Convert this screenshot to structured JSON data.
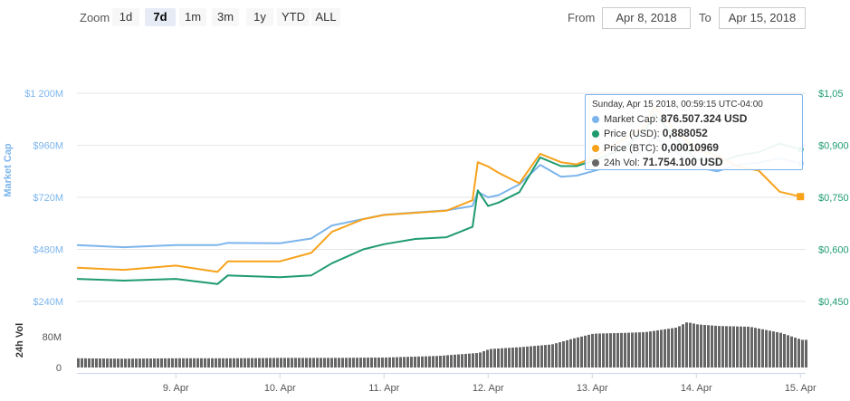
{
  "toolbar": {
    "zoom_label": "Zoom",
    "buttons": [
      "1d",
      "7d",
      "1m",
      "3m",
      "1y",
      "YTD",
      "ALL"
    ],
    "active": "7d",
    "from_label": "From",
    "from_value": "Apr 8, 2018",
    "to_label": "To",
    "to_value": "Apr 15, 2018"
  },
  "colors": {
    "market_cap": "#7cb5ec",
    "price_usd": "#1f9b6f",
    "price_btc": "#f7a21b",
    "volume": "#666666",
    "axis_left": "#7cb5ec",
    "axis_right": "#1f9b6f"
  },
  "tooltip": {
    "header": "Sunday, Apr 15 2018, 00:59:15 UTC-04:00",
    "rows": [
      {
        "label": "Market Cap:",
        "value": "876.507.324 USD",
        "color": "#7cb5ec"
      },
      {
        "label": "Price (USD):",
        "value": "0,888052",
        "color": "#1f9b6f"
      },
      {
        "label": "Price (BTC):",
        "value": "0,00010969",
        "color": "#f7a21b"
      },
      {
        "label": "24h Vol:",
        "value": "71.754.100 USD",
        "color": "#666666"
      }
    ]
  },
  "chart_data": {
    "type": "line",
    "x_ticks": [
      "9. Apr",
      "10. Apr",
      "11. Apr",
      "12. Apr",
      "13. Apr",
      "14. Apr",
      "15. Apr"
    ],
    "y_left": {
      "label": "Market Cap",
      "ticks": [
        "$240M",
        "$480M",
        "$720M",
        "$960M",
        "$1 200M"
      ],
      "values": [
        240,
        480,
        720,
        960,
        1200
      ]
    },
    "y_right": {
      "ticks": [
        "$0,450",
        "$0,600",
        "$0,750",
        "$0,900",
        "$1,05"
      ],
      "values": [
        0.45,
        0.6,
        0.75,
        0.9,
        1.05
      ]
    },
    "volume_axis": {
      "label": "24h Vol",
      "ticks": [
        "0",
        "80M"
      ],
      "values": [
        0,
        80
      ]
    },
    "x_range": [
      8.05,
      15.05
    ],
    "series": [
      {
        "name": "Market Cap",
        "unit": "M USD",
        "x": [
          8.05,
          8.5,
          9.0,
          9.4,
          9.5,
          10.0,
          10.3,
          10.5,
          10.8,
          11.0,
          11.3,
          11.6,
          11.85,
          11.9,
          12.0,
          12.1,
          12.3,
          12.5,
          12.7,
          12.85,
          13.0,
          13.3,
          13.5,
          13.6,
          13.8,
          14.0,
          14.2,
          14.4,
          14.6,
          14.8,
          15.0
        ],
        "values": [
          500,
          490,
          500,
          500,
          510,
          508,
          530,
          590,
          620,
          640,
          650,
          660,
          680,
          745,
          720,
          730,
          780,
          870,
          815,
          820,
          840,
          880,
          940,
          1000,
          930,
          860,
          840,
          870,
          880,
          900,
          876.5
        ]
      },
      {
        "name": "Price (USD)",
        "unit": "USD",
        "x": [
          8.05,
          8.5,
          9.0,
          9.4,
          9.5,
          10.0,
          10.3,
          10.5,
          10.8,
          11.0,
          11.3,
          11.6,
          11.85,
          11.9,
          12.0,
          12.1,
          12.3,
          12.5,
          12.7,
          12.85,
          13.0,
          13.3,
          13.5,
          13.6,
          13.8,
          14.0,
          14.2,
          14.4,
          14.6,
          14.8,
          15.0
        ],
        "values": [
          0.515,
          0.51,
          0.515,
          0.5,
          0.525,
          0.52,
          0.525,
          0.56,
          0.6,
          0.615,
          0.63,
          0.635,
          0.665,
          0.77,
          0.725,
          0.735,
          0.765,
          0.865,
          0.84,
          0.84,
          0.855,
          0.89,
          0.94,
          0.99,
          0.92,
          0.86,
          0.85,
          0.87,
          0.88,
          0.905,
          0.888
        ]
      },
      {
        "name": "Price (BTC)",
        "unit": "BTC",
        "x": [
          8.05,
          8.5,
          9.0,
          9.4,
          9.5,
          10.0,
          10.3,
          10.5,
          10.8,
          11.0,
          11.3,
          11.6,
          11.85,
          11.9,
          12.0,
          12.1,
          12.3,
          12.5,
          12.7,
          12.85,
          13.0,
          13.3,
          13.5,
          13.6,
          13.8,
          14.0,
          14.2,
          14.4,
          14.6,
          14.8,
          15.0
        ],
        "values": [
          7.6e-05,
          7.5e-05,
          7.7e-05,
          7.4e-05,
          7.9e-05,
          7.9e-05,
          8.3e-05,
          9.3e-05,
          9.9e-05,
          0.000101,
          0.000102,
          0.000103,
          0.000108,
          0.000126,
          0.000124,
          0.000121,
          0.000116,
          0.00013,
          0.000126,
          0.000125,
          0.000128,
          0.000137,
          0.000143,
          0.000152,
          0.000141,
          0.000132,
          0.000129,
          0.000124,
          0.000122,
          0.000112,
          0.00010969
        ]
      },
      {
        "name": "24h Vol",
        "unit": "M USD",
        "x": [
          8.05,
          8.5,
          9.0,
          9.5,
          10.0,
          10.5,
          11.0,
          11.5,
          11.9,
          12.0,
          12.3,
          12.6,
          12.8,
          13.0,
          13.3,
          13.5,
          13.8,
          13.9,
          14.0,
          14.2,
          14.5,
          14.8,
          15.0
        ],
        "values": [
          24,
          23,
          24,
          24,
          25,
          25,
          26,
          30,
          38,
          48,
          53,
          60,
          75,
          88,
          90,
          92,
          104,
          118,
          112,
          108,
          106,
          90,
          72
        ]
      }
    ]
  }
}
